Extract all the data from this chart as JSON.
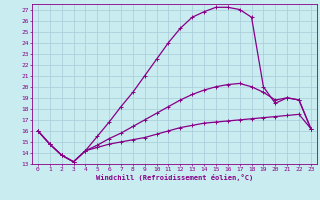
{
  "xlabel": "Windchill (Refroidissement éolien,°C)",
  "bg_color": "#c8ecf0",
  "grid_color": "#a8ccd8",
  "line_color": "#880088",
  "xlim": [
    -0.5,
    23.5
  ],
  "ylim": [
    13,
    27.5
  ],
  "xticks": [
    0,
    1,
    2,
    3,
    4,
    5,
    6,
    7,
    8,
    9,
    10,
    11,
    12,
    13,
    14,
    15,
    16,
    17,
    18,
    19,
    20,
    21,
    22,
    23
  ],
  "yticks": [
    13,
    14,
    15,
    16,
    17,
    18,
    19,
    20,
    21,
    22,
    23,
    24,
    25,
    26,
    27
  ],
  "curves": [
    [
      16.0,
      14.8,
      13.8,
      13.2,
      14.2,
      14.5,
      14.8,
      15.0,
      15.2,
      15.4,
      15.7,
      16.0,
      16.3,
      16.5,
      16.7,
      16.8,
      16.9,
      17.0,
      17.1,
      17.2,
      17.3,
      17.4,
      17.5,
      16.2
    ],
    [
      16.0,
      14.8,
      13.8,
      13.2,
      14.2,
      15.5,
      16.8,
      18.2,
      19.5,
      21.0,
      22.5,
      24.0,
      25.3,
      26.3,
      26.8,
      27.2,
      27.2,
      27.0,
      26.3,
      20.0,
      18.5,
      19.0,
      18.8,
      16.2
    ],
    [
      16.0,
      14.8,
      13.8,
      13.2,
      14.2,
      14.7,
      15.3,
      15.8,
      16.4,
      17.0,
      17.6,
      18.2,
      18.8,
      19.3,
      19.7,
      20.0,
      20.2,
      20.3,
      20.0,
      19.5,
      18.8,
      19.0,
      18.8,
      16.2
    ]
  ]
}
